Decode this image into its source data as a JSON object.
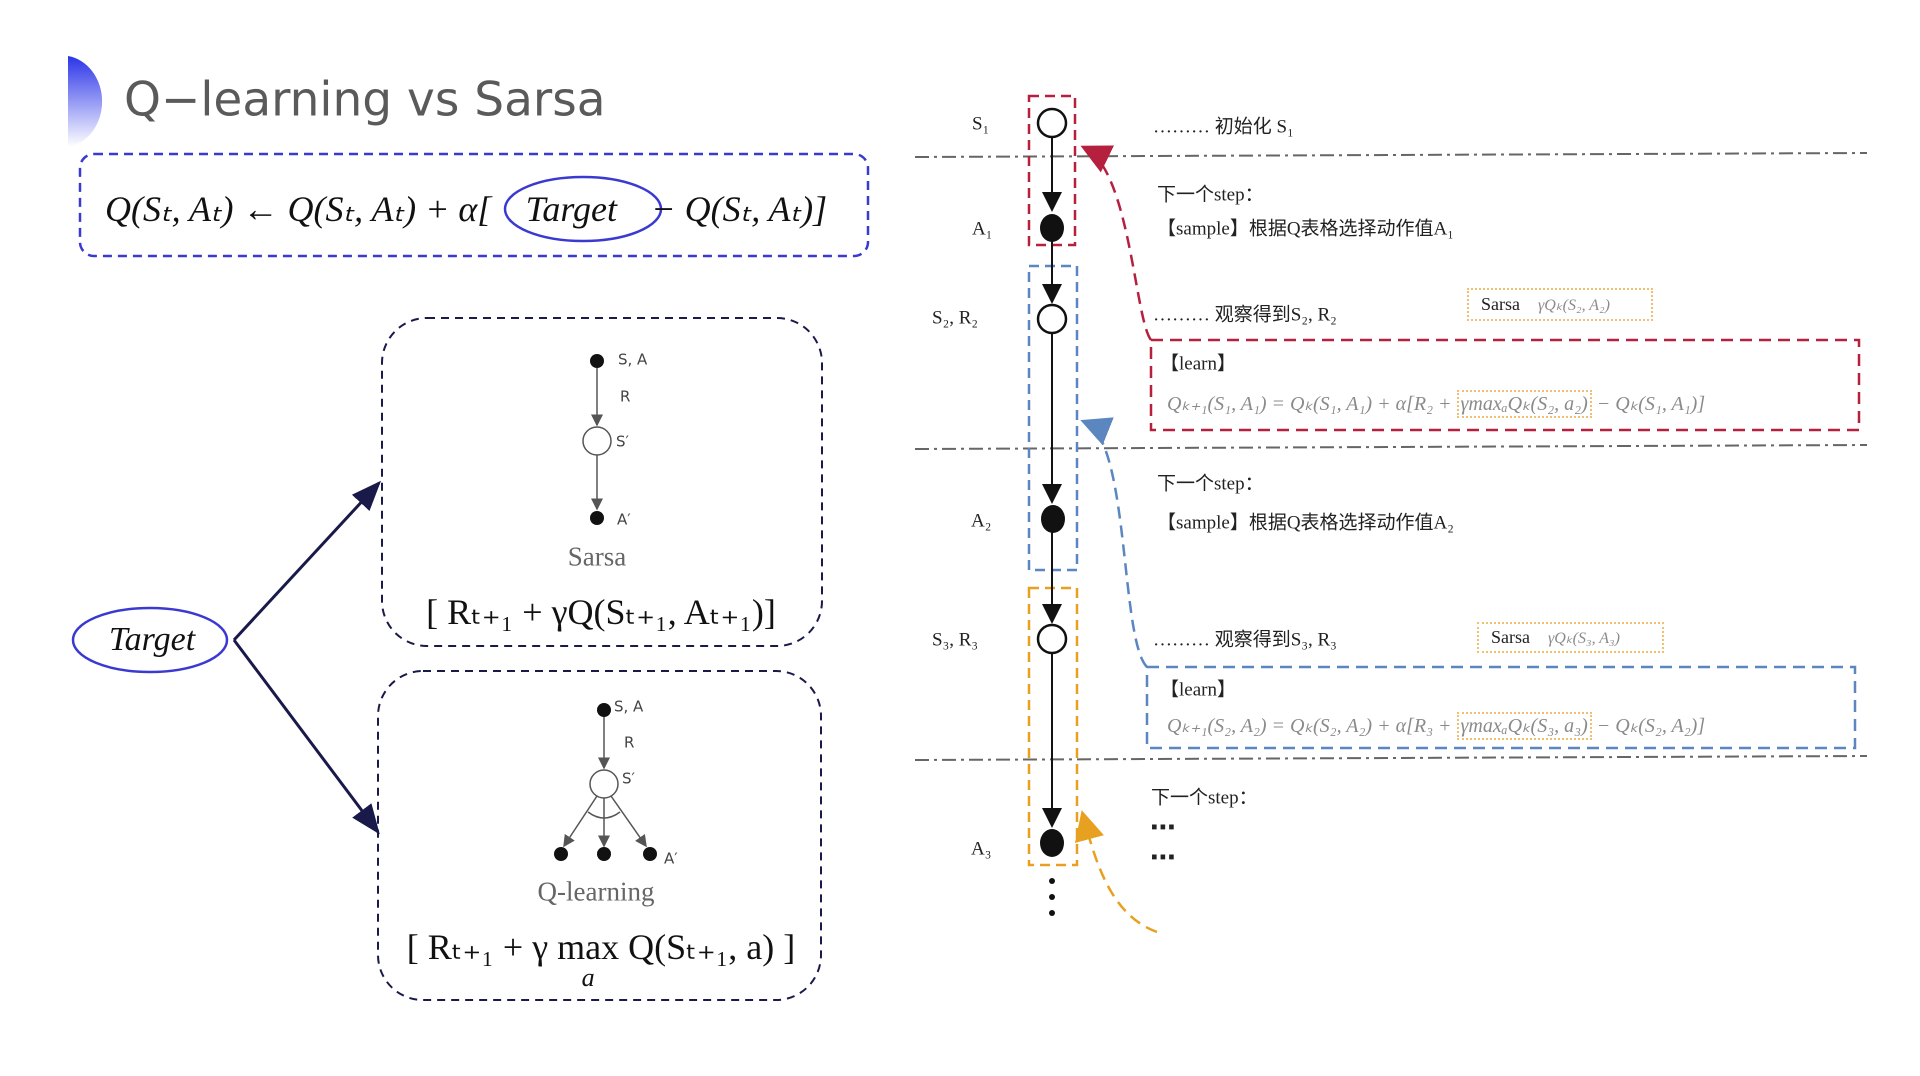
{
  "title": "Q−learning vs Sarsa",
  "colors": {
    "accent": "#2b34e8",
    "red": "#b5203f",
    "blue": "#5b86c0",
    "orange": "#e8a020",
    "navy": "#1a1a4a"
  },
  "update_rule": {
    "left": "Q(Sₜ, Aₜ) ← Q(Sₜ, Aₜ) + α[",
    "target": "Target",
    "right": "− Q(Sₜ, Aₜ)]"
  },
  "target_label": "Target",
  "sarsa": {
    "labels": {
      "sa": "S, A",
      "r": "R",
      "s_prime": "S′",
      "a_prime": "A′"
    },
    "caption": "Sarsa",
    "formula": "[ Rₜ₊₁ + γQ(Sₜ₊₁, Aₜ₊₁)]"
  },
  "qlearning": {
    "labels": {
      "sa": "S, A",
      "r": "R",
      "s_prime": "S′",
      "a_prime": "A′"
    },
    "caption": "Q-learning",
    "formula_left": "[ Rₜ₊₁ + γ ",
    "max": "max",
    "max_sub": "a",
    "formula_right": " Q(Sₜ₊₁, a) ]"
  },
  "timeline": {
    "nodes": [
      {
        "label": "S₁",
        "type": "state"
      },
      {
        "label": "A₁",
        "type": "action"
      },
      {
        "label": "S₂, R₂",
        "type": "state"
      },
      {
        "label": "A₂",
        "type": "action"
      },
      {
        "label": "S₃, R₃",
        "type": "state"
      },
      {
        "label": "A₃",
        "type": "action"
      }
    ],
    "ellipsis": "⋮"
  },
  "steps": {
    "init": "……… 初始化 S₁",
    "next1": "下一个step：",
    "sample1": "【sample】根据Q表格选择动作值A₁",
    "observe1": "……… 观察得到S₂, R₂",
    "sarsa1": {
      "name": "Sarsa",
      "expr": "γQₖ(S₂, A₂)"
    },
    "learn1": {
      "label": "【learn】",
      "pre": "Qₖ₊₁(S₁, A₁) = Qₖ(S₁, A₁) + α[R₂ +",
      "mid": "γmaxₐQₖ(S₂, a₂)",
      "post": "− Qₖ(S₁, A₁)]"
    },
    "next2": "下一个step：",
    "sample2": "【sample】根据Q表格选择动作值A₂",
    "observe2": "……… 观察得到S₃, R₃",
    "sarsa2": {
      "name": "Sarsa",
      "expr": "γQₖ(S₃, A₃)"
    },
    "learn2": {
      "label": "【learn】",
      "pre": "Qₖ₊₁(S₂, A₂) = Qₖ(S₂, A₂) + α[R₃ +",
      "mid": "γmaxₐQₖ(S₃, a₃)",
      "post": "− Qₖ(S₂, A₂)]"
    },
    "next3": "下一个step：",
    "more": "⋯"
  }
}
